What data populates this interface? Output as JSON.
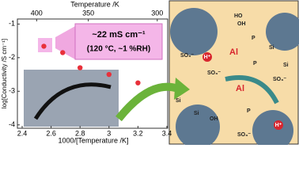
{
  "chart_data": {
    "type": "scatter",
    "xlabel": "1000/[Temperature /K]",
    "ylabel": "log[Conductivity /S cm⁻¹]",
    "top_axis_label": "Temperature /K",
    "top_ticks": [
      400,
      350,
      300
    ],
    "xlim": [
      2.4,
      3.4
    ],
    "xticks": [
      2.4,
      2.6,
      2.8,
      3.0,
      3.2,
      3.4
    ],
    "ylim": [
      -4.1,
      -0.85
    ],
    "yticks": [
      -1,
      -2,
      -3,
      -4
    ],
    "series": [
      {
        "color": "#e8303a",
        "x": [
          2.55,
          2.68,
          2.8,
          3.0,
          3.2
        ],
        "values": [
          -1.66,
          -1.85,
          -2.3,
          -2.5,
          -2.75
        ]
      }
    ],
    "annotation": [
      "~22 mS cm⁻¹",
      "(120 °C, ~1 %RH)"
    ]
  },
  "illustration": {
    "labels": [
      "Al",
      "Al",
      "H⁺",
      "H⁺",
      "SO₃⁻",
      "SO₃⁻",
      "SO₃⁻",
      "SO₃⁻",
      "Si",
      "Si",
      "Si",
      "Si",
      "P",
      "P",
      "P",
      "OH",
      "OH",
      "HO"
    ]
  }
}
